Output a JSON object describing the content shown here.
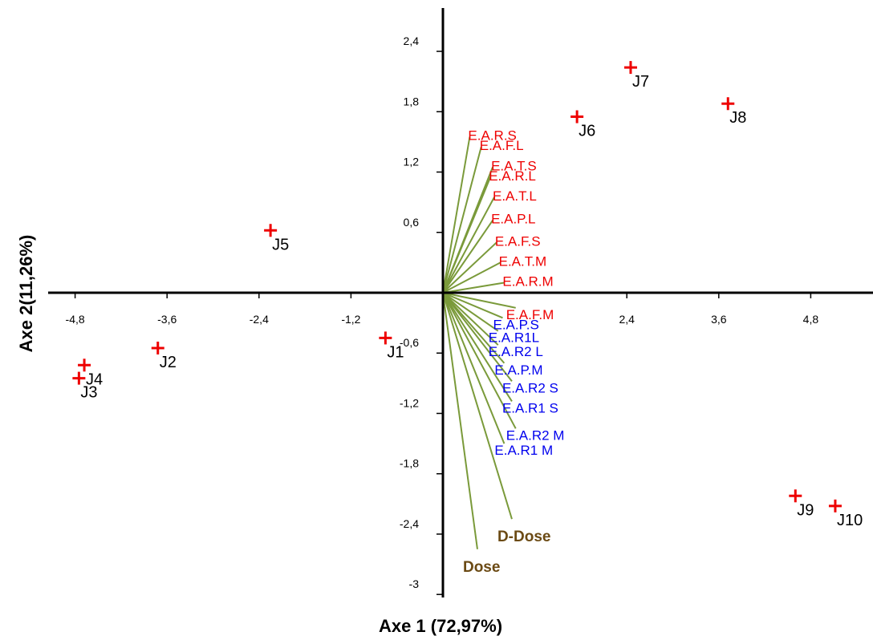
{
  "chart_data": {
    "type": "scatter",
    "xlabel": "Axe 1 (72,97%)",
    "ylabel": "Axe 2(11,26%)",
    "xlim": [
      -5.0,
      5.45
    ],
    "ylim": [
      -3.0,
      2.8
    ],
    "x_ticks": [
      "-4,8",
      "-3,6",
      "-2,4",
      "-1,2",
      "2,4",
      "3,6",
      "4,8"
    ],
    "x_tick_values": [
      -4.8,
      -3.6,
      -2.4,
      -1.2,
      2.4,
      3.6,
      4.8
    ],
    "y_ticks": [
      "2,4",
      "1,8",
      "1,2",
      "0,6",
      "-0,6",
      "-1,2",
      "-1,8",
      "-2,4",
      "-3"
    ],
    "y_tick_values": [
      2.4,
      1.8,
      1.2,
      0.6,
      -0.6,
      -1.2,
      -1.8,
      -2.4,
      -3.0
    ],
    "marker_color": "#ee0000",
    "observations": [
      {
        "label": "J1",
        "x": -0.75,
        "y": -0.45
      },
      {
        "label": "J2",
        "x": -3.72,
        "y": -0.55
      },
      {
        "label": "J3",
        "x": -4.75,
        "y": -0.85
      },
      {
        "label": "J4",
        "x": -4.68,
        "y": -0.72
      },
      {
        "label": "J5",
        "x": -2.25,
        "y": 0.62
      },
      {
        "label": "J6",
        "x": 1.75,
        "y": 1.75
      },
      {
        "label": "J7",
        "x": 2.45,
        "y": 2.24
      },
      {
        "label": "J8",
        "x": 3.72,
        "y": 1.88
      },
      {
        "label": "J9",
        "x": 4.6,
        "y": -2.02
      },
      {
        "label": "J10",
        "x": 5.12,
        "y": -2.12
      }
    ],
    "vector_color": "#7a9a3a",
    "variables": [
      {
        "label": "E.A.R.S",
        "x": 0.35,
        "y": 1.55,
        "color": "#ee0000"
      },
      {
        "label": "E.A.F.L",
        "x": 0.5,
        "y": 1.45,
        "color": "#ee0000"
      },
      {
        "label": "E.A.T.S",
        "x": 0.65,
        "y": 1.25,
        "color": "#ee0000"
      },
      {
        "label": "E.A.R.L",
        "x": 0.62,
        "y": 1.15,
        "color": "#ee0000"
      },
      {
        "label": "E.A.T.L",
        "x": 0.67,
        "y": 0.95,
        "color": "#ee0000"
      },
      {
        "label": "E.A.P.L",
        "x": 0.65,
        "y": 0.72,
        "color": "#ee0000"
      },
      {
        "label": "E.A.F.S",
        "x": 0.7,
        "y": 0.5,
        "color": "#ee0000"
      },
      {
        "label": "E.A.T.M",
        "x": 0.75,
        "y": 0.3,
        "color": "#ee0000"
      },
      {
        "label": "E.A.R.M",
        "x": 0.8,
        "y": 0.1,
        "color": "#ee0000"
      },
      {
        "label": "E.A.F.M",
        "x": 0.95,
        "y": -0.15,
        "color": "#ee0000"
      },
      {
        "label": "E.A.P.S",
        "x": 0.78,
        "y": -0.25,
        "color": "#0000ee"
      },
      {
        "label": "E.A.R1L",
        "x": 0.72,
        "y": -0.38,
        "color": "#0000ee"
      },
      {
        "label": "E.A.R2 L",
        "x": 0.72,
        "y": -0.52,
        "color": "#0000ee"
      },
      {
        "label": "E.A.P.M",
        "x": 0.8,
        "y": -0.7,
        "color": "#0000ee"
      },
      {
        "label": "E.A.R2 S",
        "x": 0.9,
        "y": -0.88,
        "color": "#0000ee"
      },
      {
        "label": "E.A.R1 S",
        "x": 0.9,
        "y": -1.08,
        "color": "#0000ee"
      },
      {
        "label": "E.A.R2 M",
        "x": 0.95,
        "y": -1.35,
        "color": "#0000ee"
      },
      {
        "label": "E.A.R1 M",
        "x": 0.8,
        "y": -1.5,
        "color": "#0000ee"
      },
      {
        "label": "D-Dose",
        "x": 0.9,
        "y": -2.25,
        "color": "#6b4a14"
      },
      {
        "label": "Dose",
        "x": 0.45,
        "y": -2.55,
        "color": "#6b4a14"
      }
    ]
  }
}
